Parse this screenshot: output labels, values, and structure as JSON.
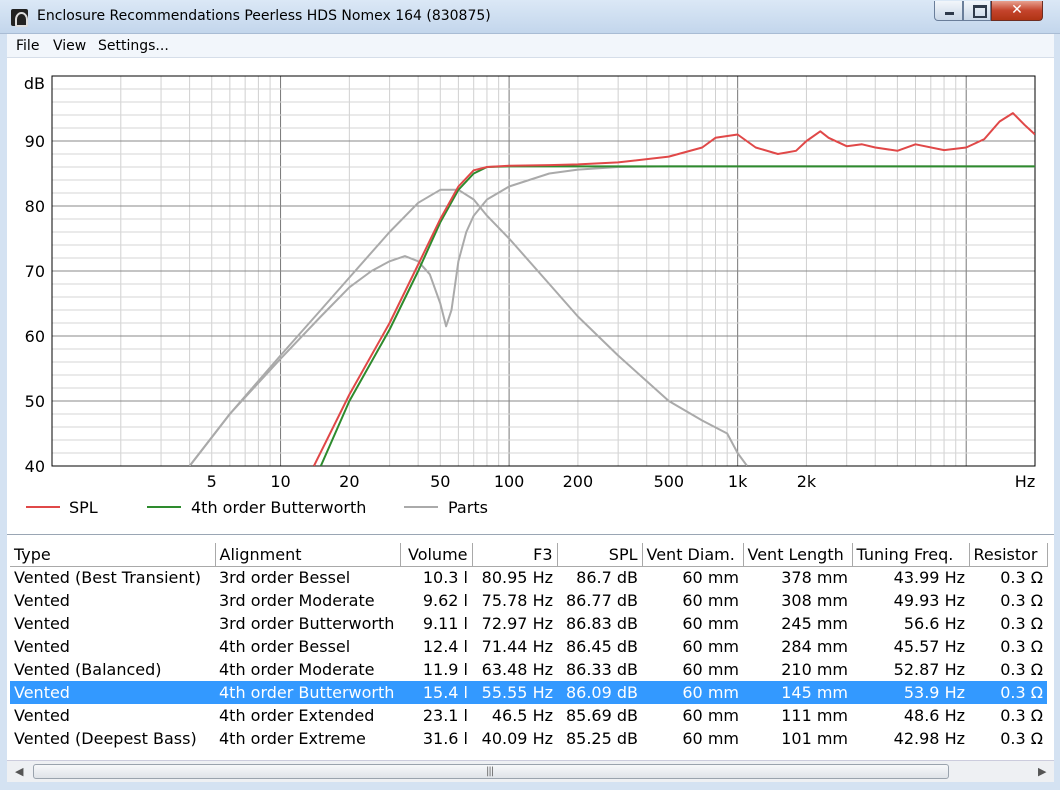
{
  "window": {
    "title": "Enclosure Recommendations Peerless HDS Nomex 164 (830875)"
  },
  "menu": [
    "File",
    "View",
    "Settings..."
  ],
  "chart_data": {
    "type": "line",
    "xscale": "log",
    "xlim": [
      1,
      20000
    ],
    "ylim": [
      40,
      100
    ],
    "xticks": [
      {
        "v": 5,
        "label": "5"
      },
      {
        "v": 10,
        "label": "10"
      },
      {
        "v": 20,
        "label": "20"
      },
      {
        "v": 50,
        "label": "50"
      },
      {
        "v": 100,
        "label": "100"
      },
      {
        "v": 200,
        "label": "200"
      },
      {
        "v": 500,
        "label": "500"
      },
      {
        "v": 1000,
        "label": "1k"
      },
      {
        "v": 2000,
        "label": "2k"
      }
    ],
    "xunit": "Hz",
    "yticks": [
      40,
      50,
      60,
      70,
      80,
      90
    ],
    "yunit": "dB",
    "grid": true,
    "legend_position": "bottom",
    "series": [
      {
        "name": "SPL",
        "color": "#e04848",
        "x": [
          14,
          20,
          30,
          40,
          50,
          60,
          70,
          80,
          100,
          150,
          200,
          300,
          500,
          700,
          800,
          1000,
          1200,
          1500,
          1800,
          2000,
          2300,
          2500,
          3000,
          3500,
          4000,
          5000,
          6000,
          8000,
          10000,
          12000,
          14000,
          16000,
          18000,
          20000
        ],
        "y": [
          40,
          51,
          62,
          71,
          78,
          83,
          85.5,
          86,
          86.2,
          86.3,
          86.4,
          86.7,
          87.6,
          89,
          90.5,
          91,
          89,
          88,
          88.5,
          90,
          91.5,
          90.5,
          89.2,
          89.5,
          89,
          88.5,
          89.5,
          88.6,
          89,
          90.3,
          93,
          94.3,
          92.5,
          91
        ]
      },
      {
        "name": "4th order Butterworth",
        "color": "#2e8b2e",
        "x": [
          15,
          20,
          30,
          40,
          50,
          60,
          70,
          80,
          100,
          150,
          200,
          300,
          500,
          1000,
          2000,
          5000,
          20000
        ],
        "y": [
          40,
          50,
          61,
          70,
          77.5,
          82.5,
          85,
          86,
          86.1,
          86.1,
          86.1,
          86.1,
          86.1,
          86.1,
          86.1,
          86.1,
          86.1
        ]
      },
      {
        "name": "Parts",
        "color": "#aaaaaa",
        "x": [
          4,
          6,
          10,
          15,
          20,
          30,
          40,
          50,
          60,
          70,
          80,
          100,
          150,
          200,
          300,
          500,
          700,
          900,
          1000,
          1100
        ],
        "y": [
          40,
          48,
          57,
          64,
          69,
          76,
          80.5,
          82.5,
          82.5,
          81,
          78.5,
          75,
          68,
          63,
          57,
          50,
          47,
          45,
          42,
          40
        ]
      },
      {
        "name": "",
        "color": "#aaaaaa",
        "x": [
          4,
          6,
          10,
          15,
          20,
          25,
          30,
          35,
          40,
          45,
          50,
          53,
          56,
          60,
          65,
          70,
          80,
          100,
          150,
          200,
          300,
          500,
          1000,
          2000,
          5000,
          20000
        ],
        "y": [
          40,
          48,
          56.5,
          63,
          67.5,
          70,
          71.5,
          72.3,
          71.5,
          69.5,
          65,
          61.5,
          64,
          71.5,
          76,
          78.5,
          81,
          83,
          85,
          85.6,
          86,
          86.1,
          86.1,
          86.1,
          86.1,
          86.1
        ]
      }
    ]
  },
  "table": {
    "headers": [
      "Type",
      "Alignment",
      "Volume",
      "F3",
      "SPL",
      "Vent Diam.",
      "Vent Length",
      "Tuning Freq.",
      "Resistor"
    ],
    "rows": [
      [
        "Vented (Best Transient)",
        "3rd order Bessel",
        "10.3 l",
        "80.95 Hz",
        "86.7 dB",
        "60 mm",
        "378 mm",
        "43.99 Hz",
        "0.3 Ω"
      ],
      [
        "Vented",
        "3rd order Moderate",
        "9.62 l",
        "75.78 Hz",
        "86.77 dB",
        "60 mm",
        "308 mm",
        "49.93 Hz",
        "0.3 Ω"
      ],
      [
        "Vented",
        "3rd order Butterworth",
        "9.11 l",
        "72.97 Hz",
        "86.83 dB",
        "60 mm",
        "245 mm",
        "56.6 Hz",
        "0.3 Ω"
      ],
      [
        "Vented",
        "4th order Bessel",
        "12.4 l",
        "71.44 Hz",
        "86.45 dB",
        "60 mm",
        "284 mm",
        "45.57 Hz",
        "0.3 Ω"
      ],
      [
        "Vented (Balanced)",
        "4th order Moderate",
        "11.9 l",
        "63.48 Hz",
        "86.33 dB",
        "60 mm",
        "210 mm",
        "52.87 Hz",
        "0.3 Ω"
      ],
      [
        "Vented",
        "4th order Butterworth",
        "15.4 l",
        "55.55 Hz",
        "86.09 dB",
        "60 mm",
        "145 mm",
        "53.9 Hz",
        "0.3 Ω"
      ],
      [
        "Vented",
        "4th order Extended",
        "23.1 l",
        "46.5 Hz",
        "85.69 dB",
        "60 mm",
        "111 mm",
        "48.6 Hz",
        "0.3 Ω"
      ],
      [
        "Vented (Deepest Bass)",
        "4th order Extreme",
        "31.6 l",
        "40.09 Hz",
        "85.25 dB",
        "60 mm",
        "101 mm",
        "42.98 Hz",
        "0.3 Ω"
      ]
    ],
    "selected_row": 5
  },
  "scrollbar": {
    "left_arrow": "◀",
    "right_arrow": "▶",
    "grip": "|||"
  },
  "colors": {
    "selection": "#3399ff",
    "titlebar": "#c3d6ec"
  }
}
